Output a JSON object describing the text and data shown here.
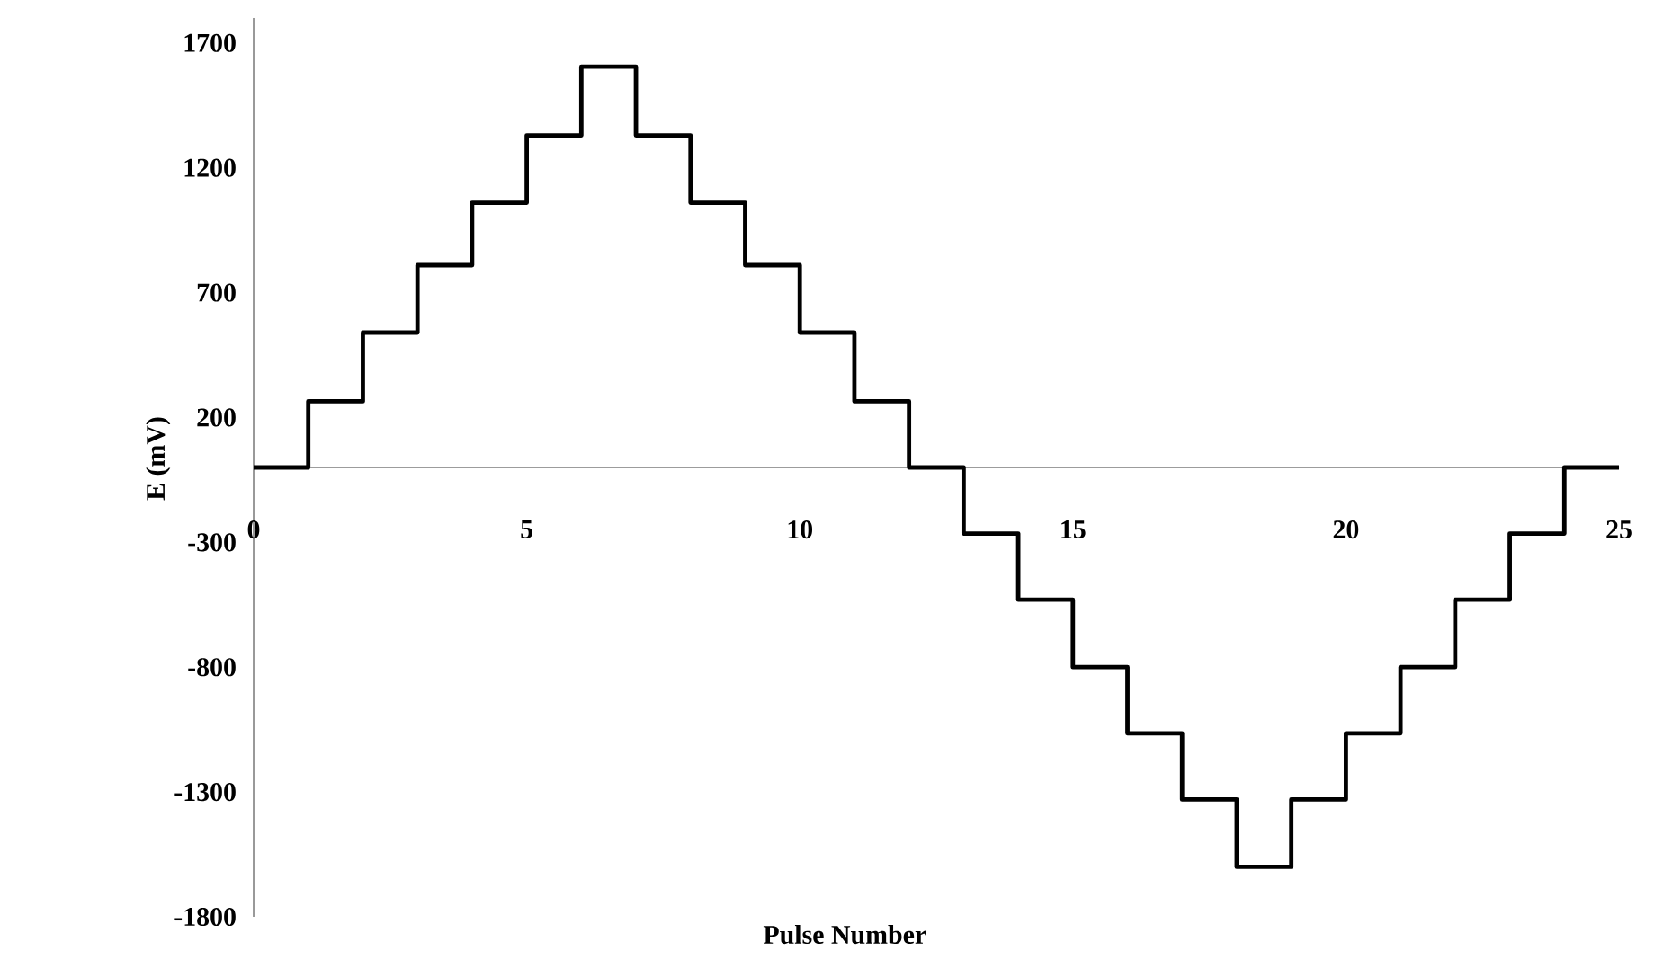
{
  "chart_data": {
    "type": "step",
    "xlabel": "Pulse Number",
    "ylabel": "E (mV)",
    "color": "#000000",
    "x": [
      0,
      1,
      2,
      3,
      4,
      5,
      6,
      7,
      8,
      9,
      10,
      11,
      12,
      13,
      14,
      15,
      16,
      17,
      18,
      19,
      20,
      21,
      22,
      23,
      24,
      25
    ],
    "values": [
      0,
      265,
      540,
      810,
      1060,
      1330,
      1605,
      1330,
      1060,
      810,
      540,
      265,
      0,
      -265,
      -530,
      -800,
      -1065,
      -1330,
      -1600,
      -1330,
      -1065,
      -800,
      -530,
      -265,
      0,
      0
    ],
    "xlim": [
      0,
      25
    ],
    "ylim": [
      -1800,
      1800
    ],
    "xticks": [
      0,
      5,
      10,
      15,
      20,
      25
    ],
    "yticks": [
      1700,
      1200,
      700,
      200,
      -300,
      -800,
      -1300,
      -1800
    ]
  }
}
